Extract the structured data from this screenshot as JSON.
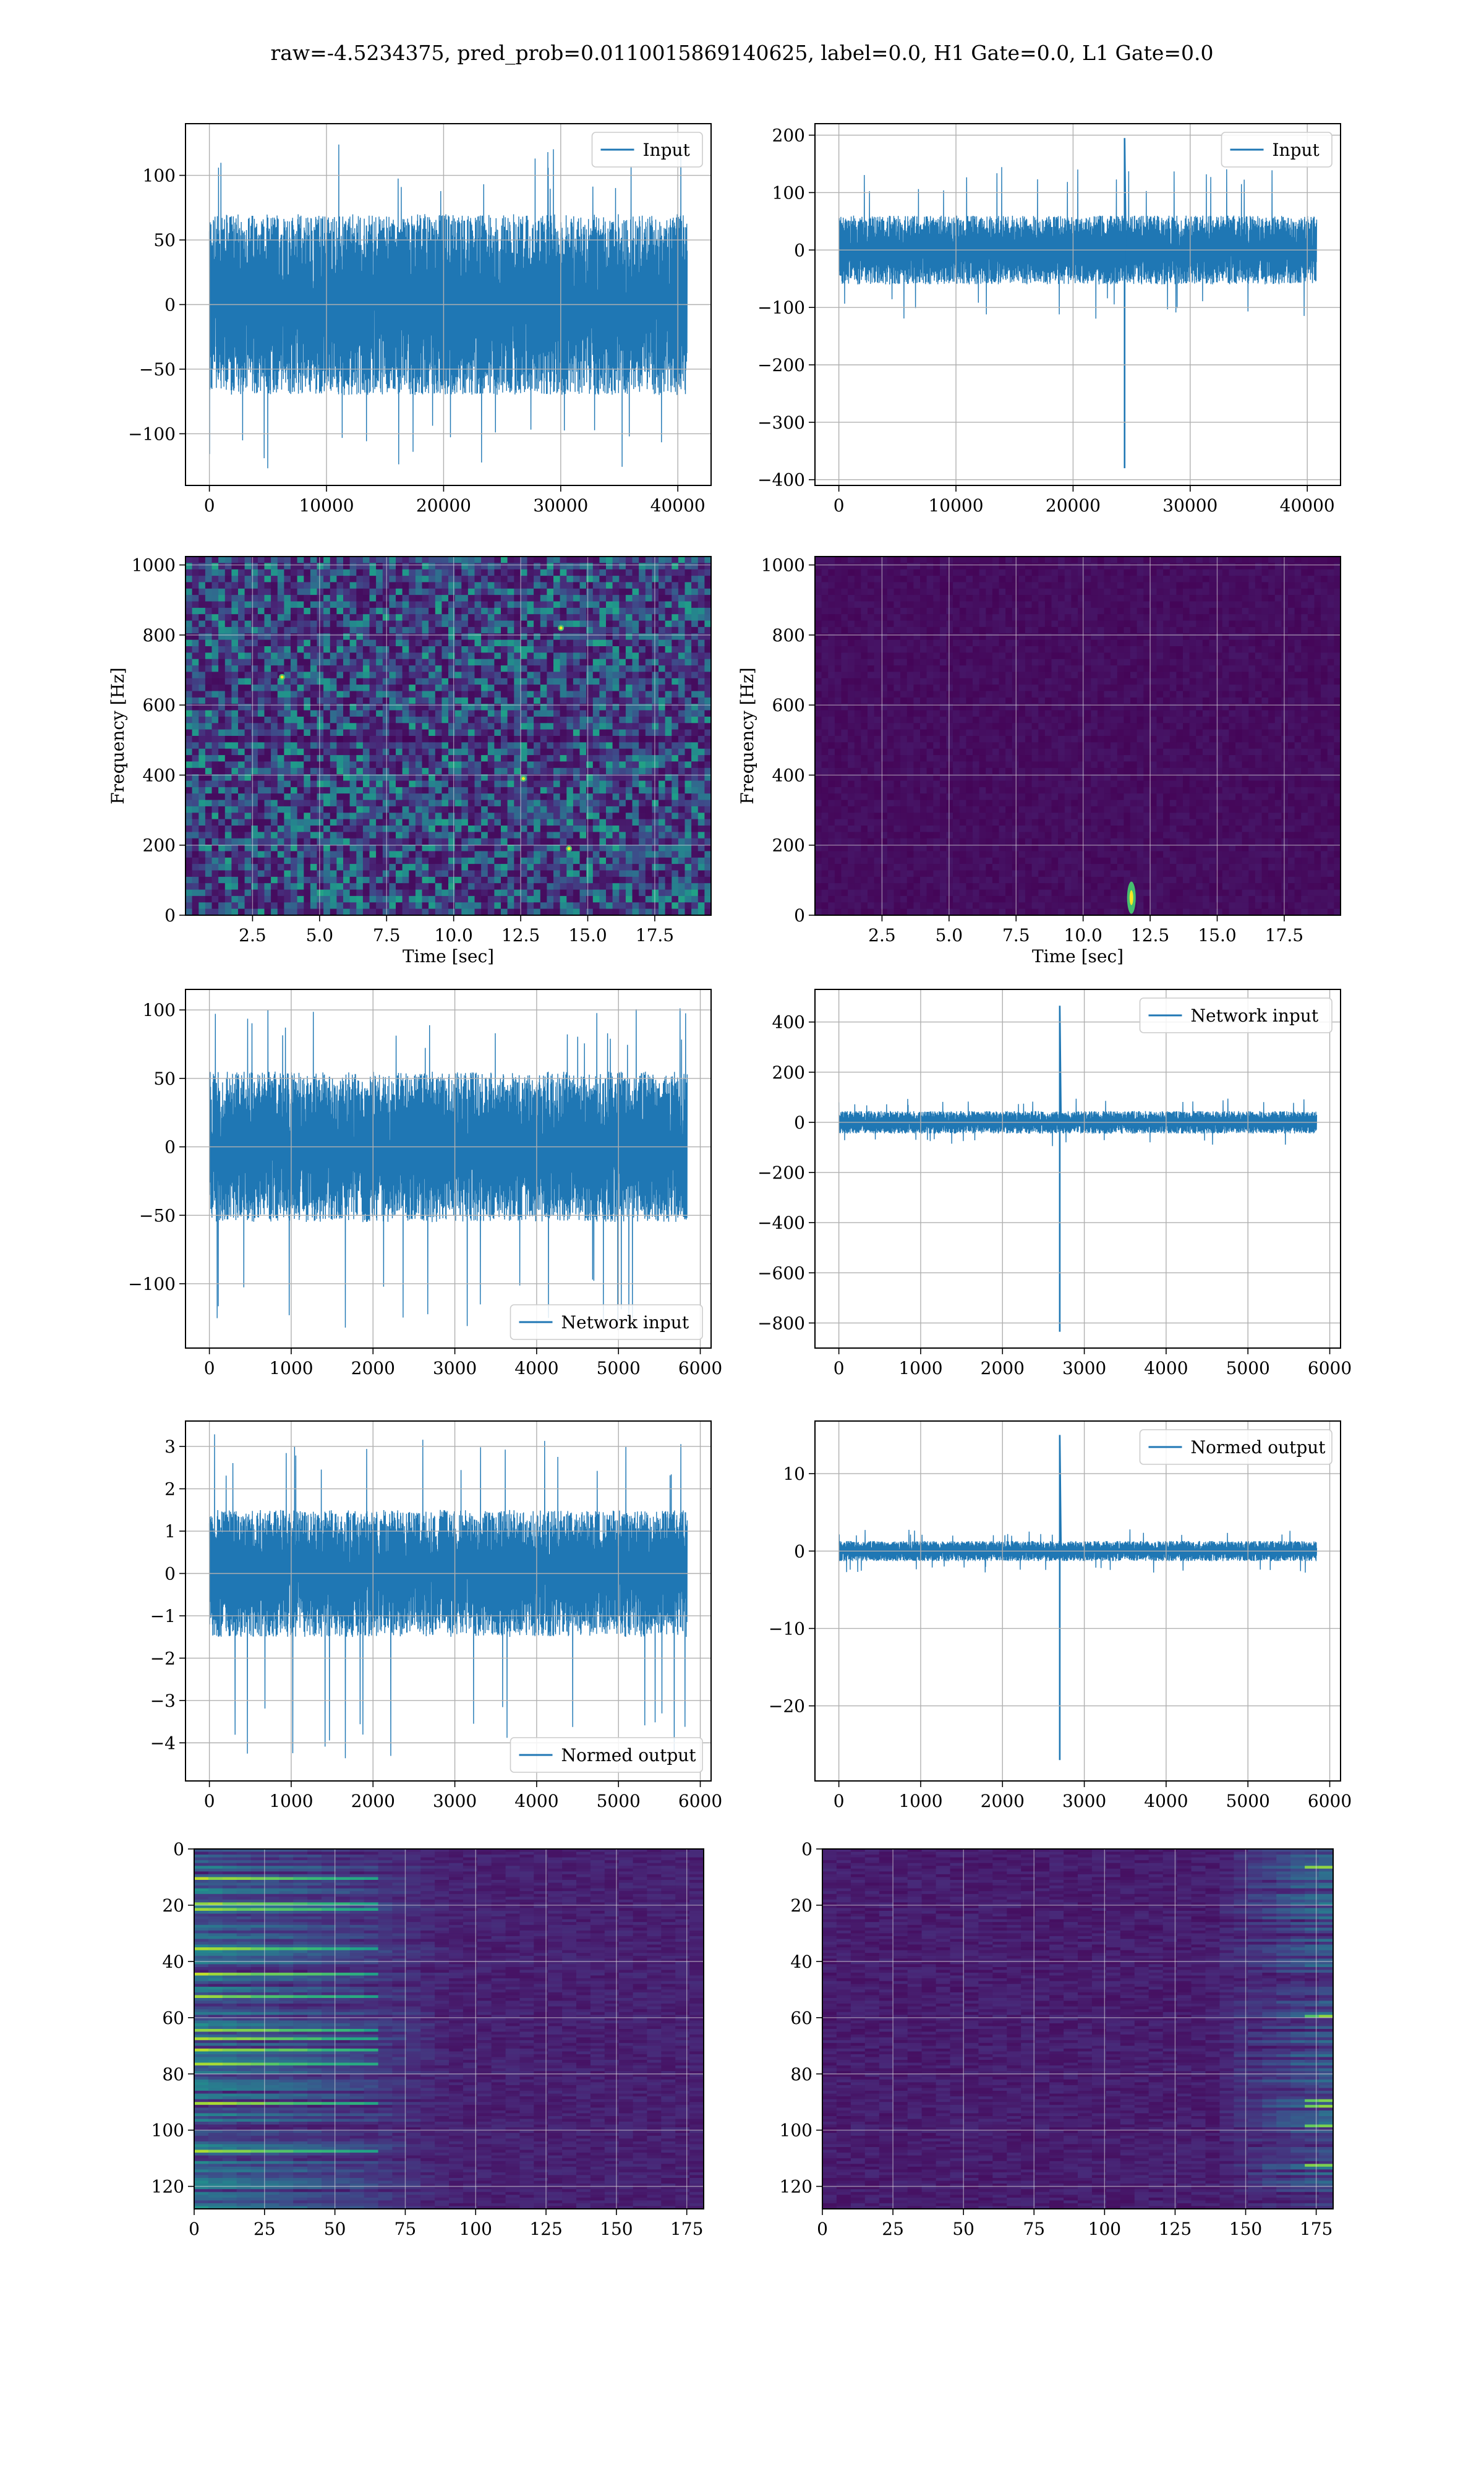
{
  "figure": {
    "suptitle": "raw=-4.5234375, pred_prob=0.0110015869140625, label=0.0, H1 Gate=0.0, L1 Gate=0.0",
    "series_color": "#1f77b4",
    "grid_color": "#b0b0b0"
  },
  "chart_data": [
    {
      "type": "line",
      "row": 1,
      "col": 1,
      "legend": [
        "Input"
      ],
      "legend_loc": "top-right",
      "xlabel": "",
      "ylabel": "",
      "grid": true,
      "xlim": [
        -2040,
        42840
      ],
      "ylim": [
        -140,
        140
      ],
      "xticks": [
        0,
        10000,
        20000,
        30000,
        40000
      ],
      "yticks": [
        -100,
        -50,
        0,
        50,
        100
      ],
      "signal": {
        "x_start": 0,
        "x_end": 40800,
        "band": [
          -70,
          70
        ],
        "peak_high": 125,
        "peak_low": -128,
        "spikes": []
      }
    },
    {
      "type": "line",
      "row": 1,
      "col": 2,
      "legend": [
        "Input"
      ],
      "legend_loc": "top-right",
      "xlabel": "",
      "ylabel": "",
      "grid": true,
      "xlim": [
        -2040,
        42840
      ],
      "ylim": [
        -410,
        220
      ],
      "xticks": [
        0,
        10000,
        20000,
        30000,
        40000
      ],
      "yticks": [
        -400,
        -300,
        -200,
        -100,
        0,
        100,
        200
      ],
      "signal": {
        "x_start": 0,
        "x_end": 40800,
        "band": [
          -60,
          60
        ],
        "peak_high": 145,
        "peak_low": -120,
        "spikes": [
          {
            "x": 24400,
            "min": -380,
            "max": 195
          }
        ]
      }
    },
    {
      "type": "heatmap",
      "row": 2,
      "col": 1,
      "xlabel": "Time [sec]",
      "ylabel": "Frequency [Hz]",
      "grid": true,
      "xlim": [
        0,
        19.6
      ],
      "ylim": [
        0,
        1024
      ],
      "xticks": [
        2.5,
        5.0,
        7.5,
        10.0,
        12.5,
        15.0,
        17.5
      ],
      "xtick_labels": [
        "2.5",
        "5.0",
        "7.5",
        "10.0",
        "12.5",
        "15.0",
        "17.5"
      ],
      "yticks": [
        0,
        200,
        400,
        600,
        800,
        1000
      ],
      "colormap": "viridis",
      "texture": "noisy",
      "hotspots": [
        {
          "x": 14.0,
          "y": 820
        },
        {
          "x": 3.6,
          "y": 680
        },
        {
          "x": 14.3,
          "y": 190
        },
        {
          "x": 12.6,
          "y": 390
        }
      ]
    },
    {
      "type": "heatmap",
      "row": 2,
      "col": 2,
      "xlabel": "Time [sec]",
      "ylabel": "Frequency [Hz]",
      "grid": true,
      "xlim": [
        0,
        19.6
      ],
      "ylim": [
        0,
        1024
      ],
      "xticks": [
        2.5,
        5.0,
        7.5,
        10.0,
        12.5,
        15.0,
        17.5
      ],
      "xtick_labels": [
        "2.5",
        "5.0",
        "7.5",
        "10.0",
        "12.5",
        "15.0",
        "17.5"
      ],
      "yticks": [
        0,
        200,
        400,
        600,
        800,
        1000
      ],
      "colormap": "viridis",
      "texture": "dark",
      "hotspots": [
        {
          "x": 11.8,
          "y": 50
        }
      ]
    },
    {
      "type": "line",
      "row": 3,
      "col": 1,
      "legend": [
        "Network input"
      ],
      "legend_loc": "bottom-right",
      "xlabel": "",
      "ylabel": "",
      "grid": true,
      "xlim": [
        -292,
        6132
      ],
      "ylim": [
        -147,
        115
      ],
      "xticks": [
        0,
        1000,
        2000,
        3000,
        4000,
        5000,
        6000
      ],
      "yticks": [
        -100,
        -50,
        0,
        50,
        100
      ],
      "signal": {
        "x_start": 0,
        "x_end": 5840,
        "band": [
          -55,
          55
        ],
        "peak_high": 103,
        "peak_low": -138,
        "spikes": []
      }
    },
    {
      "type": "line",
      "row": 3,
      "col": 2,
      "legend": [
        "Network input"
      ],
      "legend_loc": "top-right",
      "xlabel": "",
      "ylabel": "",
      "grid": true,
      "xlim": [
        -292,
        6132
      ],
      "ylim": [
        -900,
        530
      ],
      "xticks": [
        0,
        1000,
        2000,
        3000,
        4000,
        5000,
        6000
      ],
      "yticks": [
        -800,
        -600,
        -400,
        -200,
        0,
        200,
        400
      ],
      "signal": {
        "x_start": 0,
        "x_end": 5840,
        "band": [
          -45,
          45
        ],
        "peak_high": 95,
        "peak_low": -95,
        "spikes": [
          {
            "x": 2700,
            "min": -835,
            "max": 465
          }
        ]
      }
    },
    {
      "type": "line",
      "row": 4,
      "col": 1,
      "legend": [
        "Normed output"
      ],
      "legend_loc": "bottom-right",
      "xlabel": "",
      "ylabel": "",
      "grid": true,
      "xlim": [
        -292,
        6132
      ],
      "ylim": [
        -4.9,
        3.6
      ],
      "xticks": [
        0,
        1000,
        2000,
        3000,
        4000,
        5000,
        6000
      ],
      "yticks": [
        -4,
        -3,
        -2,
        -1,
        0,
        1,
        2,
        3
      ],
      "signal": {
        "x_start": 0,
        "x_end": 5840,
        "band": [
          -1.5,
          1.5
        ],
        "peak_high": 3.3,
        "peak_low": -4.5,
        "spikes": []
      }
    },
    {
      "type": "line",
      "row": 4,
      "col": 2,
      "legend": [
        "Normed output"
      ],
      "legend_loc": "top-right",
      "xlabel": "",
      "ylabel": "",
      "grid": true,
      "xlim": [
        -292,
        6132
      ],
      "ylim": [
        -29.7,
        16.8
      ],
      "xticks": [
        0,
        1000,
        2000,
        3000,
        4000,
        5000,
        6000
      ],
      "yticks": [
        -20,
        -10,
        0,
        10
      ],
      "signal": {
        "x_start": 0,
        "x_end": 5840,
        "band": [
          -1.3,
          1.3
        ],
        "peak_high": 2.8,
        "peak_low": -2.8,
        "spikes": [
          {
            "x": 2700,
            "min": -27,
            "max": 15
          }
        ]
      }
    },
    {
      "type": "heatmap",
      "row": 5,
      "col": 1,
      "xlabel": "",
      "ylabel": "",
      "grid": true,
      "xlim": [
        0,
        181
      ],
      "ylim": [
        128,
        0
      ],
      "xticks": [
        0,
        25,
        50,
        75,
        100,
        125,
        150,
        175
      ],
      "yticks": [
        0,
        20,
        40,
        60,
        80,
        100,
        120
      ],
      "colormap": "viridis",
      "texture": "streaks-left"
    },
    {
      "type": "heatmap",
      "row": 5,
      "col": 2,
      "xlabel": "",
      "ylabel": "",
      "grid": true,
      "xlim": [
        0,
        181
      ],
      "ylim": [
        128,
        0
      ],
      "xticks": [
        0,
        25,
        50,
        75,
        100,
        125,
        150,
        175
      ],
      "yticks": [
        0,
        20,
        40,
        60,
        80,
        100,
        120
      ],
      "colormap": "viridis",
      "texture": "streaks-right"
    }
  ]
}
